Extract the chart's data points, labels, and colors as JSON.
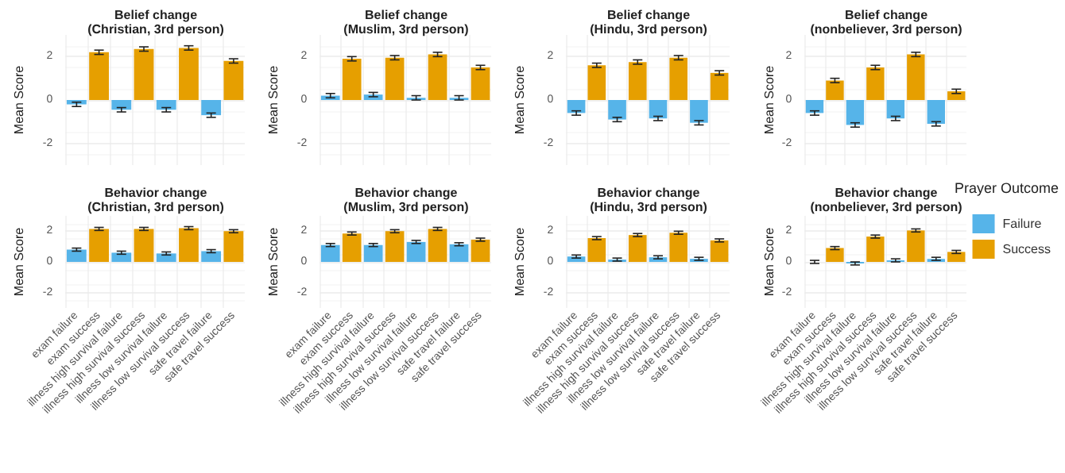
{
  "chart_data": [
    {
      "type": "bar",
      "title": "Belief change\n(Christian, 3rd person)",
      "ylabel": "Mean Score",
      "categories": [
        null,
        null,
        null,
        null,
        null,
        null,
        null,
        null
      ],
      "ylim": [
        -3,
        3
      ],
      "yticks": [
        -2,
        0,
        2
      ],
      "grid": true,
      "tick_labels": "y",
      "series": [
        {
          "color": "#56b4e9",
          "values": [
            -0.2,
            null,
            -0.45,
            null,
            -0.45,
            null,
            -0.7,
            null
          ],
          "errors": [
            0.1,
            null,
            0.1,
            null,
            0.1,
            null,
            0.1,
            null
          ]
        },
        {
          "color": "#e69f00",
          "values": [
            null,
            2.2,
            null,
            2.35,
            null,
            2.4,
            null,
            1.8
          ],
          "errors": [
            null,
            0.1,
            null,
            0.1,
            null,
            0.1,
            null,
            0.1
          ]
        }
      ]
    },
    {
      "type": "bar",
      "title": "Belief change\n(Muslim, 3rd person)",
      "ylabel": "Mean Score",
      "categories": [
        null,
        null,
        null,
        null,
        null,
        null,
        null,
        null
      ],
      "ylim": [
        -3,
        3
      ],
      "yticks": [
        -2,
        0,
        2
      ],
      "grid": true,
      "tick_labels": "y",
      "series": [
        {
          "color": "#56b4e9",
          "values": [
            0.2,
            null,
            0.25,
            null,
            0.1,
            null,
            0.1,
            null
          ],
          "errors": [
            0.1,
            null,
            0.1,
            null,
            0.1,
            null,
            0.1,
            null
          ]
        },
        {
          "color": "#e69f00",
          "values": [
            null,
            1.9,
            null,
            1.95,
            null,
            2.1,
            null,
            1.5
          ],
          "errors": [
            null,
            0.1,
            null,
            0.1,
            null,
            0.1,
            null,
            0.1
          ]
        }
      ]
    },
    {
      "type": "bar",
      "title": "Belief change\n(Hindu, 3rd person)",
      "ylabel": "Mean Score",
      "categories": [
        null,
        null,
        null,
        null,
        null,
        null,
        null,
        null
      ],
      "ylim": [
        -3,
        3
      ],
      "yticks": [
        -2,
        0,
        2
      ],
      "grid": true,
      "tick_labels": "y",
      "series": [
        {
          "color": "#56b4e9",
          "values": [
            -0.6,
            null,
            -0.9,
            null,
            -0.85,
            null,
            -1.05,
            null
          ],
          "errors": [
            0.1,
            null,
            0.1,
            null,
            0.1,
            null,
            0.1,
            null
          ]
        },
        {
          "color": "#e69f00",
          "values": [
            null,
            1.6,
            null,
            1.75,
            null,
            1.95,
            null,
            1.25
          ],
          "errors": [
            null,
            0.1,
            null,
            0.1,
            null,
            0.1,
            null,
            0.1
          ]
        }
      ]
    },
    {
      "type": "bar",
      "title": "Belief change\n(nonbeliever, 3rd person)",
      "ylabel": "Mean Score",
      "categories": [
        null,
        null,
        null,
        null,
        null,
        null,
        null,
        null
      ],
      "ylim": [
        -3,
        3
      ],
      "yticks": [
        -2,
        0,
        2
      ],
      "grid": true,
      "tick_labels": "y",
      "series": [
        {
          "color": "#56b4e9",
          "values": [
            -0.6,
            null,
            -1.15,
            null,
            -0.85,
            null,
            -1.1,
            null
          ],
          "errors": [
            0.1,
            null,
            0.1,
            null,
            0.1,
            null,
            0.1,
            null
          ]
        },
        {
          "color": "#e69f00",
          "values": [
            null,
            0.9,
            null,
            1.5,
            null,
            2.1,
            null,
            0.4
          ],
          "errors": [
            null,
            0.1,
            null,
            0.1,
            null,
            0.1,
            null,
            0.1
          ]
        }
      ]
    },
    {
      "type": "bar",
      "title": "Behavior change\n(Christian, 3rd person)",
      "ylabel": "Mean Score",
      "categories": [
        "exam failure",
        "exam success",
        "illness high survival failure",
        "illness high survival success",
        "illness low survival failure",
        "illness low survival success",
        "safe travel failure",
        "safe travel success"
      ],
      "ylim": [
        -3,
        3
      ],
      "yticks": [
        -2,
        0,
        2
      ],
      "grid": true,
      "series": [
        {
          "color": "#56b4e9",
          "values": [
            0.8,
            null,
            0.6,
            null,
            0.55,
            null,
            0.7,
            null
          ],
          "errors": [
            0.1,
            null,
            0.1,
            null,
            0.1,
            null,
            0.1,
            null
          ]
        },
        {
          "color": "#e69f00",
          "values": [
            null,
            2.15,
            null,
            2.15,
            null,
            2.2,
            null,
            2
          ],
          "errors": [
            null,
            0.1,
            null,
            0.1,
            null,
            0.1,
            null,
            0.1
          ]
        }
      ]
    },
    {
      "type": "bar",
      "title": "Behavior change\n(Muslim, 3rd person)",
      "ylabel": "Mean Score",
      "categories": [
        "exam failure",
        "exam success",
        "illness high survival failure",
        "illness high survival success",
        "illness low survival failure",
        "illness low survival success",
        "safe travel failure",
        "safe travel success"
      ],
      "ylim": [
        -3,
        3
      ],
      "yticks": [
        -2,
        0,
        2
      ],
      "grid": true,
      "series": [
        {
          "color": "#56b4e9",
          "values": [
            1.1,
            null,
            1.1,
            null,
            1.3,
            null,
            1.15,
            null
          ],
          "errors": [
            0.1,
            null,
            0.1,
            null,
            0.1,
            null,
            0.1,
            null
          ]
        },
        {
          "color": "#e69f00",
          "values": [
            null,
            1.85,
            null,
            2,
            null,
            2.15,
            null,
            1.45
          ],
          "errors": [
            null,
            0.1,
            null,
            0.1,
            null,
            0.1,
            null,
            0.1
          ]
        }
      ]
    },
    {
      "type": "bar",
      "title": "Behavior change\n(Hindu, 3rd person)",
      "ylabel": "Mean Score",
      "categories": [
        "exam failure",
        "exam success",
        "illness high survival failure",
        "illness high survival success",
        "illness low survival failure",
        "illness low survival success",
        "safe travel failure",
        "safe travel success"
      ],
      "ylim": [
        -3,
        3
      ],
      "yticks": [
        -2,
        0,
        2
      ],
      "grid": true,
      "series": [
        {
          "color": "#56b4e9",
          "values": [
            0.35,
            null,
            0.15,
            null,
            0.3,
            null,
            0.2,
            null
          ],
          "errors": [
            0.1,
            null,
            0.1,
            null,
            0.1,
            null,
            0.1,
            null
          ]
        },
        {
          "color": "#e69f00",
          "values": [
            null,
            1.55,
            null,
            1.75,
            null,
            1.9,
            null,
            1.4
          ],
          "errors": [
            null,
            0.1,
            null,
            0.1,
            null,
            0.1,
            null,
            0.1
          ]
        }
      ]
    },
    {
      "type": "bar",
      "title": "Behavior change\n(nonbeliever, 3rd person)",
      "ylabel": "Mean Score",
      "categories": [
        "exam failure",
        "exam success",
        "illness high survival failure",
        "illness high survival success",
        "illness low survival failure",
        "illness low survival success",
        "safe travel failure",
        "safe travel success"
      ],
      "ylim": [
        -3,
        3
      ],
      "yticks": [
        -2,
        0,
        2
      ],
      "grid": true,
      "legend": "right",
      "legend_title": "Prayer Outcome",
      "series": [
        {
          "name": "Failure",
          "color": "#56b4e9",
          "values": [
            0,
            null,
            -0.1,
            null,
            0.1,
            null,
            0.2,
            null
          ],
          "errors": [
            0.1,
            null,
            0.1,
            null,
            0.1,
            null,
            0.1,
            null
          ]
        },
        {
          "name": "Success",
          "color": "#e69f00",
          "values": [
            null,
            0.9,
            null,
            1.65,
            null,
            2.05,
            null,
            0.65
          ],
          "errors": [
            null,
            0.1,
            null,
            0.1,
            null,
            0.1,
            null,
            0.1
          ]
        }
      ]
    }
  ]
}
